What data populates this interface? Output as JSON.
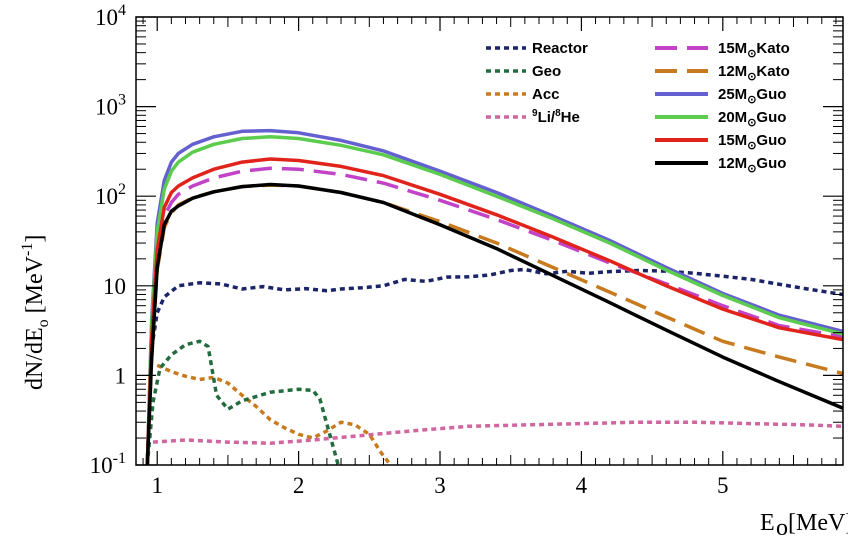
{
  "chart_data": {
    "type": "line",
    "title": "",
    "xlabel": "E_o [MeV]",
    "ylabel": "dN/dE_o [MeV^-1]",
    "xlim": [
      0.85,
      5.85
    ],
    "ylim": [
      0.1,
      10000
    ],
    "yscale": "log",
    "x_ticks": [
      1,
      2,
      3,
      4,
      5
    ],
    "x_tick_labels": [
      "1",
      "2",
      "3",
      "4",
      "5"
    ],
    "y_tick_labels": [
      {
        "value": 0.1,
        "label": "10^-1"
      },
      {
        "value": 1,
        "label": "1"
      },
      {
        "value": 10,
        "label": "10"
      },
      {
        "value": 100,
        "label": "10^2"
      },
      {
        "value": 1000,
        "label": "10^3"
      },
      {
        "value": 10000,
        "label": "10^4"
      }
    ],
    "grid": false,
    "legend_position": "top-right",
    "series": [
      {
        "name": "Reactor",
        "color": "#1a2466",
        "style": "dotted",
        "x": [
          0.93,
          0.96,
          1.0,
          1.05,
          1.15,
          1.3,
          1.45,
          1.6,
          1.75,
          1.9,
          2.05,
          2.2,
          2.3,
          2.45,
          2.6,
          2.75,
          2.9,
          3.05,
          3.2,
          3.35,
          3.5,
          3.6,
          3.75,
          3.9,
          4.05,
          4.2,
          4.4,
          4.6,
          4.8,
          5.0,
          5.2,
          5.4,
          5.6,
          5.85
        ],
        "y": [
          0.1,
          2,
          5,
          7.5,
          10,
          10.8,
          10.5,
          9.2,
          9.8,
          9.0,
          9.3,
          8.8,
          9.2,
          9.5,
          10.0,
          11.8,
          11.2,
          12.5,
          12.6,
          13.2,
          14.8,
          15.2,
          13.6,
          14.5,
          13.8,
          14.4,
          14.8,
          14.6,
          13.8,
          12.8,
          11.8,
          10.4,
          9.2,
          8.0
        ]
      },
      {
        "name": "Geo",
        "color": "#256b40",
        "style": "dotted",
        "x": [
          0.93,
          0.97,
          1.02,
          1.1,
          1.2,
          1.3,
          1.36,
          1.42,
          1.5,
          1.6,
          1.8,
          2.0,
          2.1,
          2.15,
          2.22,
          2.28
        ],
        "y": [
          0.1,
          0.5,
          1.2,
          1.7,
          2.2,
          2.4,
          2.1,
          0.6,
          0.42,
          0.52,
          0.65,
          0.7,
          0.68,
          0.55,
          0.22,
          0.1
        ]
      },
      {
        "name": "Acc",
        "color": "#c87a1e",
        "style": "dotted",
        "x": [
          1.0,
          1.1,
          1.2,
          1.3,
          1.4,
          1.5,
          1.6,
          1.7,
          1.8,
          1.9,
          2.0,
          2.1,
          2.2,
          2.3,
          2.4,
          2.5,
          2.58,
          2.65
        ],
        "y": [
          1.3,
          1.1,
          0.98,
          0.9,
          0.95,
          0.82,
          0.6,
          0.45,
          0.32,
          0.26,
          0.22,
          0.2,
          0.24,
          0.3,
          0.28,
          0.22,
          0.14,
          0.1
        ]
      },
      {
        "name": "9Li/8He",
        "color": "#d0659f",
        "style": "dotted",
        "x": [
          0.97,
          1.2,
          1.5,
          1.8,
          2.1,
          2.4,
          2.8,
          3.2,
          3.6,
          4.0,
          4.4,
          4.8,
          5.2,
          5.6,
          5.85
        ],
        "y": [
          0.18,
          0.19,
          0.18,
          0.175,
          0.19,
          0.21,
          0.24,
          0.27,
          0.28,
          0.29,
          0.3,
          0.3,
          0.29,
          0.28,
          0.27
        ]
      },
      {
        "name": "15M Kato",
        "color": "#c243c8",
        "style": "dashed",
        "x": [
          0.93,
          0.96,
          1.0,
          1.05,
          1.1,
          1.15,
          1.25,
          1.4,
          1.6,
          1.8,
          2.0,
          2.3,
          2.6,
          3.0,
          3.4,
          3.8,
          4.2,
          4.6,
          5.0,
          5.4,
          5.85
        ],
        "y": [
          0.1,
          2,
          20,
          60,
          85,
          105,
          130,
          160,
          190,
          205,
          200,
          175,
          140,
          90,
          55,
          32,
          18,
          10.5,
          6,
          3.6,
          2.7
        ]
      },
      {
        "name": "12M Kato",
        "color": "#c87a1e",
        "style": "dashed",
        "x": [
          0.93,
          0.96,
          1.0,
          1.05,
          1.1,
          1.15,
          1.25,
          1.4,
          1.6,
          1.8,
          2.0,
          2.3,
          2.6,
          3.0,
          3.4,
          3.8,
          4.2,
          4.6,
          5.0,
          5.4,
          5.85
        ],
        "y": [
          0.1,
          1.5,
          15,
          45,
          65,
          80,
          96,
          112,
          128,
          133,
          130,
          110,
          85,
          52,
          30,
          16,
          8.5,
          4.5,
          2.4,
          1.6,
          1.05
        ]
      },
      {
        "name": "25M Guo",
        "color": "#6460d0",
        "style": "solid",
        "x": [
          0.93,
          0.96,
          1.0,
          1.05,
          1.1,
          1.15,
          1.25,
          1.4,
          1.6,
          1.8,
          2.0,
          2.3,
          2.6,
          3.0,
          3.4,
          3.8,
          4.2,
          4.6,
          5.0,
          5.4,
          5.85
        ],
        "y": [
          0.1,
          4,
          50,
          150,
          240,
          300,
          380,
          460,
          530,
          540,
          510,
          420,
          320,
          190,
          110,
          60,
          32,
          16,
          8.2,
          4.7,
          3.1
        ]
      },
      {
        "name": "20M Guo",
        "color": "#5ccc4f",
        "style": "solid",
        "x": [
          0.93,
          0.96,
          1.0,
          1.05,
          1.1,
          1.15,
          1.25,
          1.4,
          1.6,
          1.8,
          2.0,
          2.3,
          2.6,
          3.0,
          3.4,
          3.8,
          4.2,
          4.6,
          5.0,
          5.4,
          5.85
        ],
        "y": [
          0.1,
          3.5,
          40,
          120,
          190,
          240,
          310,
          380,
          440,
          460,
          440,
          370,
          290,
          175,
          100,
          56,
          30,
          15,
          7.8,
          4.4,
          2.9
        ]
      },
      {
        "name": "15M Guo",
        "color": "#e0241c",
        "style": "solid",
        "x": [
          0.93,
          0.96,
          1.0,
          1.05,
          1.1,
          1.15,
          1.25,
          1.4,
          1.6,
          1.8,
          2.0,
          2.3,
          2.6,
          3.0,
          3.4,
          3.8,
          4.2,
          4.6,
          5.0,
          5.4,
          5.85
        ],
        "y": [
          0.1,
          2.5,
          25,
          75,
          110,
          130,
          160,
          200,
          240,
          260,
          250,
          215,
          170,
          105,
          62,
          35,
          19,
          10,
          5.5,
          3.4,
          2.5
        ]
      },
      {
        "name": "12M Guo",
        "color": "#000000",
        "style": "solid",
        "x": [
          0.93,
          0.96,
          1.0,
          1.05,
          1.1,
          1.15,
          1.25,
          1.4,
          1.6,
          1.8,
          2.0,
          2.3,
          2.6,
          3.0,
          3.4,
          3.8,
          4.2,
          4.6,
          5.0,
          5.4,
          5.85
        ],
        "y": [
          0.1,
          1.5,
          16,
          48,
          68,
          78,
          95,
          112,
          128,
          135,
          130,
          110,
          85,
          48,
          26,
          13,
          6.5,
          3.2,
          1.6,
          0.85,
          0.43
        ]
      }
    ],
    "legend_left": [
      {
        "series": "Reactor",
        "label": "Reactor"
      },
      {
        "series": "Geo",
        "label": "Geo"
      },
      {
        "series": "Acc",
        "label": "Acc"
      },
      {
        "series": "9Li/8He",
        "label_sup1": "9",
        "label_main1": "Li/",
        "label_sup2": "8",
        "label_main2": "He"
      }
    ],
    "legend_right": [
      {
        "series": "15M Kato",
        "pre": "15M",
        "post": "Kato"
      },
      {
        "series": "12M Kato",
        "pre": "12M",
        "post": "Kato"
      },
      {
        "series": "25M Guo",
        "pre": "25M",
        "post": "Guo"
      },
      {
        "series": "20M Guo",
        "pre": "20M",
        "post": "Guo"
      },
      {
        "series": "15M Guo",
        "pre": "15M",
        "post": "Guo"
      },
      {
        "series": "12M Guo",
        "pre": "12M",
        "post": "Guo"
      }
    ],
    "solar_symbol": "⊙"
  }
}
